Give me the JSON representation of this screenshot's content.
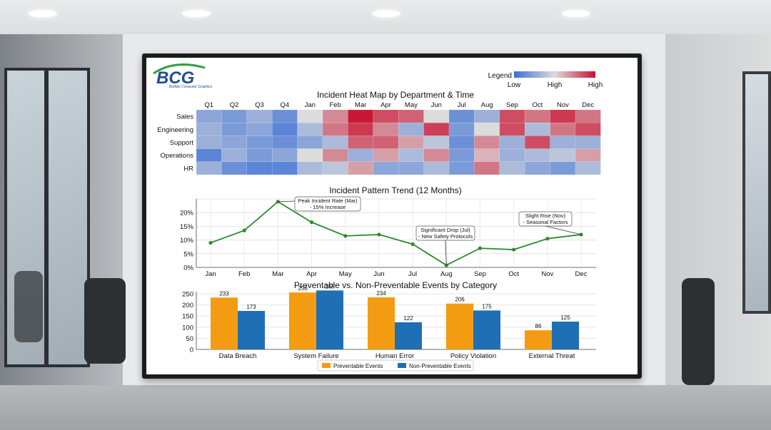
{
  "brand": {
    "logo_text": "BCG",
    "tagline": "Buffalo Computer Graphics"
  },
  "legend": {
    "title": "Legend",
    "labels": [
      "Low",
      "High",
      "High"
    ]
  },
  "chart_data": [
    {
      "type": "heatmap",
      "title": "Incident Heat Map by Department & Time",
      "columns": [
        "Q1",
        "Q2",
        "Q3",
        "Q4",
        "Jan",
        "Feb",
        "Mar",
        "Apr",
        "May",
        "Jun",
        "Jul",
        "Aug",
        "Sep",
        "Oct",
        "Nov",
        "Dec"
      ],
      "rows": [
        "Sales",
        "Engineering",
        "Support",
        "Operations",
        "HR"
      ],
      "values": [
        [
          0.25,
          0.2,
          0.3,
          0.15,
          0.5,
          0.7,
          0.98,
          0.85,
          0.8,
          0.5,
          0.15,
          0.3,
          0.85,
          0.75,
          0.9,
          0.75
        ],
        [
          0.3,
          0.2,
          0.25,
          0.1,
          0.35,
          0.75,
          0.9,
          0.7,
          0.3,
          0.88,
          0.2,
          0.5,
          0.85,
          0.35,
          0.75,
          0.85
        ],
        [
          0.3,
          0.25,
          0.2,
          0.15,
          0.25,
          0.35,
          0.8,
          0.8,
          0.65,
          0.4,
          0.15,
          0.7,
          0.3,
          0.85,
          0.3,
          0.3
        ],
        [
          0.1,
          0.3,
          0.2,
          0.25,
          0.5,
          0.7,
          0.3,
          0.65,
          0.35,
          0.7,
          0.2,
          0.6,
          0.3,
          0.35,
          0.4,
          0.65
        ],
        [
          0.3,
          0.15,
          0.1,
          0.1,
          0.35,
          0.4,
          0.65,
          0.25,
          0.25,
          0.35,
          0.2,
          0.75,
          0.35,
          0.25,
          0.2,
          0.35
        ]
      ]
    },
    {
      "type": "line",
      "title": "Incident Pattern Trend (12 Months)",
      "x": [
        "Jan",
        "Feb",
        "Mar",
        "Apr",
        "May",
        "Jun",
        "Jul",
        "Aug",
        "Sep",
        "Oct",
        "Nov",
        "Dec"
      ],
      "series": [
        {
          "name": "Incident Rate",
          "values": [
            9,
            13.5,
            24,
            16.5,
            11.5,
            12,
            8.5,
            0.8,
            7,
            6.5,
            10.5,
            12
          ]
        }
      ],
      "ylim": [
        0,
        25
      ],
      "yticks": [
        "0%",
        "5%",
        "10%",
        "15%",
        "20%"
      ],
      "annotations": [
        {
          "point": "Mar",
          "lines": [
            "Peak Incident Rate (Mar)",
            "- 15% Increase"
          ]
        },
        {
          "point": "Aug",
          "lines": [
            "Significant Drop (Jul)",
            "- New Safety Protocols"
          ]
        },
        {
          "point": "Dec",
          "lines": [
            "Slight Rise (Nov)",
            "- Seasonal Factors"
          ]
        }
      ]
    },
    {
      "type": "bar",
      "title": "Preventable vs. Non-Preventable Events by Category",
      "categories": [
        "Data Breach",
        "System Failure",
        "Human Error",
        "Policy Violation",
        "External Threat"
      ],
      "series": [
        {
          "name": "Preventable Events",
          "color": "#f39c12",
          "values": [
            233,
            256,
            234,
            206,
            86
          ]
        },
        {
          "name": "Non-Preventable Events",
          "color": "#1f6fb5",
          "values": [
            173,
            265,
            122,
            175,
            125
          ]
        }
      ],
      "ylim": [
        0,
        260
      ],
      "yticks": [
        0,
        50,
        100,
        150,
        200,
        250
      ]
    }
  ]
}
